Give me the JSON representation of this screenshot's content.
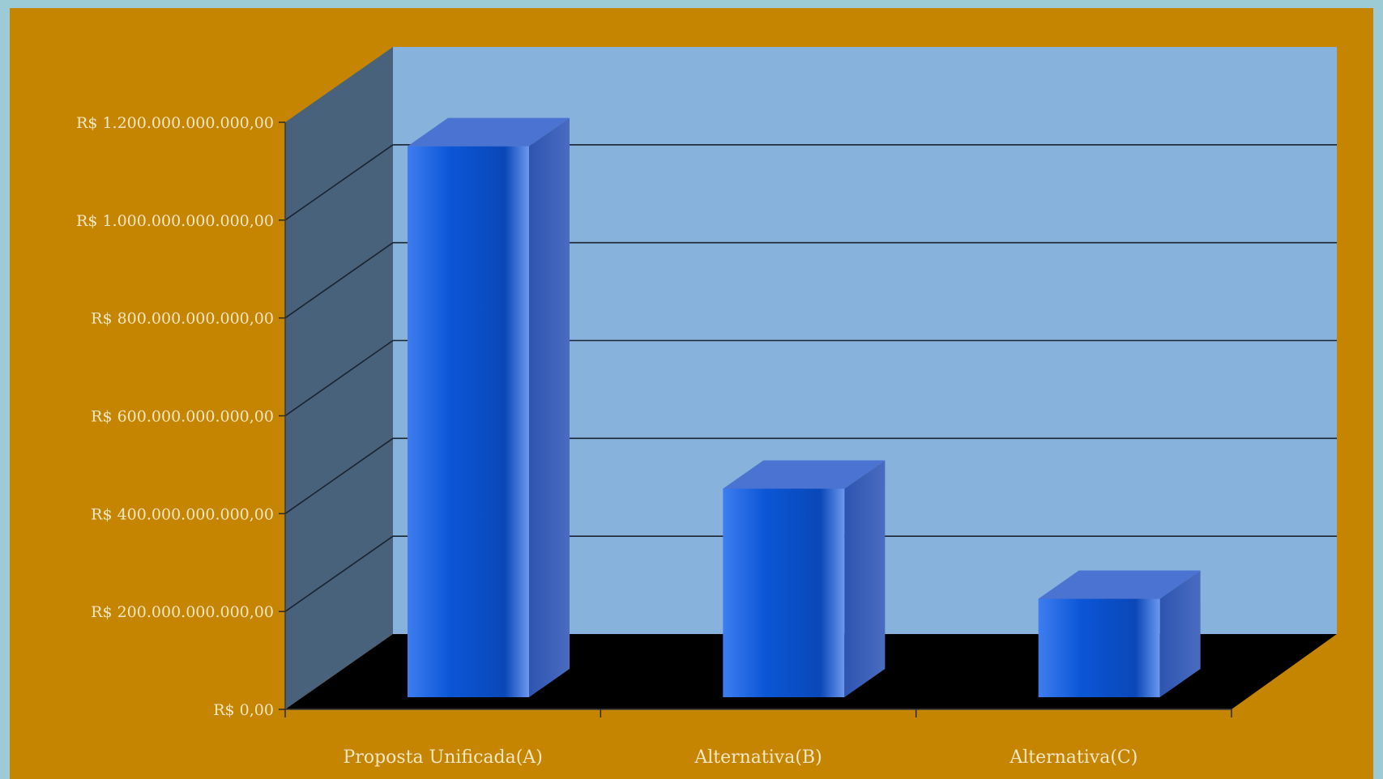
{
  "chart_data": {
    "type": "bar",
    "title": "",
    "xlabel": "",
    "ylabel": "",
    "categories": [
      "Proposta Unificada(A)",
      "Alternativa(B)",
      "Alternativa(C)"
    ],
    "values": [
      1180000000000,
      480000000000,
      255000000000
    ],
    "ylim": [
      0,
      1200000000000
    ],
    "yticks": [
      0,
      200000000000,
      400000000000,
      600000000000,
      800000000000,
      1000000000000,
      1200000000000
    ],
    "ytick_labels": [
      "R$ 0,00",
      "R$ 200.000.000.000,00",
      "R$ 400.000.000.000,00",
      "R$ 600.000.000.000,00",
      "R$ 800.000.000.000,00",
      "R$ 1.000.000.000.000,00",
      "R$ 1.200.000.000.000,00"
    ],
    "grid": true,
    "style": "3d",
    "colors": {
      "frame": "#c58500",
      "wall": "#86b2dc",
      "side_wall": "#48627b",
      "floor": "#000000",
      "bar_front": "#0b56d6",
      "bar_top": "#4a73d2",
      "bar_side": "#2a4fa8",
      "grid": "#1a2430",
      "text": "#f4e7c5"
    }
  }
}
